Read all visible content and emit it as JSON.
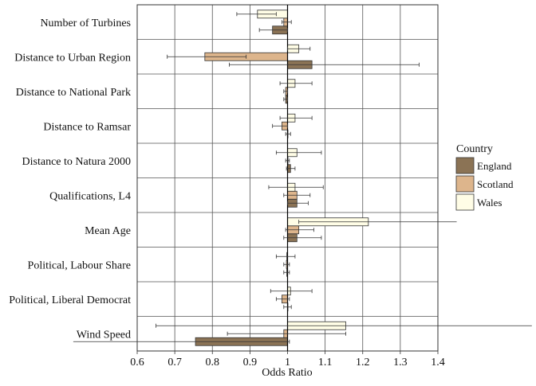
{
  "chart_data": {
    "type": "bar",
    "orientation": "horizontal",
    "xlabel": "Odds Ratio",
    "ylabel": "",
    "xlim": [
      0.6,
      1.4
    ],
    "xticks": [
      "0.6",
      "0.7",
      "0.8",
      "0.9",
      "1",
      "1.1",
      "1.2",
      "1.3",
      "1.4"
    ],
    "reference_line": 1,
    "grid": true,
    "legend_position": "right",
    "legend_title": "Country",
    "categories": [
      "Number of Turbines",
      "Distance to  Urban Region",
      "Distance to National Park",
      "Distance to Ramsar",
      "Distance to Natura 2000",
      "Qualifications, L4",
      "Mean Age",
      "Political, Labour Share",
      "Political, Liberal Democrat",
      "Wind Speed"
    ],
    "series": [
      {
        "name": "England",
        "color": "#8b7355",
        "values": [
          0.96,
          1.065,
          0.995,
          1.0,
          1.008,
          1.025,
          1.025,
          0.998,
          1.0,
          0.755
        ],
        "ci_low": [
          0.925,
          0.845,
          0.99,
          0.995,
          0.997,
          1.0,
          0.99,
          0.99,
          0.99,
          0.43
        ],
        "ci_high": [
          1.0,
          1.35,
          1.0,
          1.008,
          1.02,
          1.055,
          1.09,
          1.005,
          1.01,
          1.005
        ]
      },
      {
        "name": "Scotland",
        "color": "#ddb58c",
        "values": [
          0.99,
          0.78,
          0.995,
          0.985,
          1.0,
          1.025,
          1.03,
          0.997,
          0.985,
          0.99
        ],
        "ci_low": [
          0.985,
          0.68,
          0.99,
          0.96,
          0.995,
          0.99,
          0.995,
          0.99,
          0.97,
          0.84
        ],
        "ci_high": [
          1.01,
          0.89,
          1.0,
          1.0,
          1.005,
          1.06,
          1.07,
          1.005,
          1.005,
          1.155
        ]
      },
      {
        "name": "Wales",
        "color": "#fffde6",
        "values": [
          0.92,
          1.03,
          1.02,
          1.02,
          1.025,
          1.02,
          1.215,
          0.998,
          1.008,
          1.155
        ],
        "ci_low": [
          0.865,
          1.0,
          0.98,
          0.98,
          0.97,
          0.95,
          1.03,
          0.97,
          0.955,
          0.65
        ],
        "ci_high": [
          0.97,
          1.06,
          1.065,
          1.065,
          1.09,
          1.095,
          1.45,
          1.02,
          1.065,
          1.65
        ]
      }
    ]
  }
}
